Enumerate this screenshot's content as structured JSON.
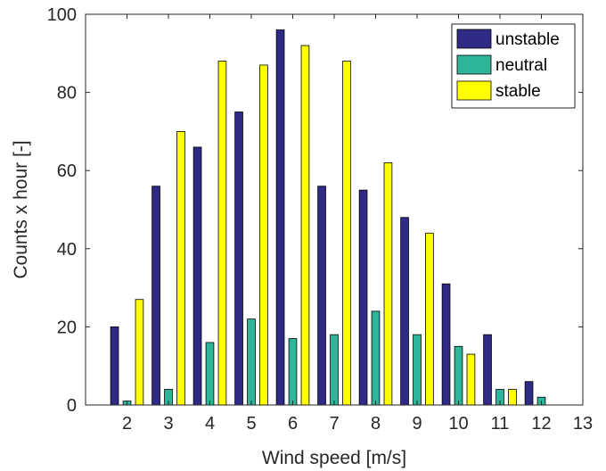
{
  "chart_data": {
    "type": "bar",
    "xlabel": "Wind speed [m/s]",
    "ylabel": "Counts x hour [-]",
    "xlim": [
      1,
      13
    ],
    "ylim": [
      0,
      100
    ],
    "xticks": [
      "2",
      "3",
      "4",
      "5",
      "6",
      "7",
      "8",
      "9",
      "10",
      "11",
      "12",
      "13"
    ],
    "yticks": [
      "0",
      "20",
      "40",
      "60",
      "80",
      "100"
    ],
    "categories": [
      2,
      3,
      4,
      5,
      6,
      7,
      8,
      9,
      10,
      11,
      12
    ],
    "series": [
      {
        "name": "unstable",
        "color": "#2e2a86",
        "values": [
          20,
          56,
          66,
          75,
          96,
          56,
          55,
          48,
          31,
          18,
          6
        ]
      },
      {
        "name": "neutral",
        "color": "#2fb59a",
        "values": [
          1,
          4,
          16,
          22,
          17,
          18,
          24,
          18,
          15,
          4,
          2
        ]
      },
      {
        "name": "stable",
        "color": "#ffff00",
        "values": [
          27,
          70,
          88,
          87,
          92,
          88,
          62,
          44,
          13,
          4,
          0
        ]
      }
    ],
    "legend": "top-right",
    "grid": false
  }
}
